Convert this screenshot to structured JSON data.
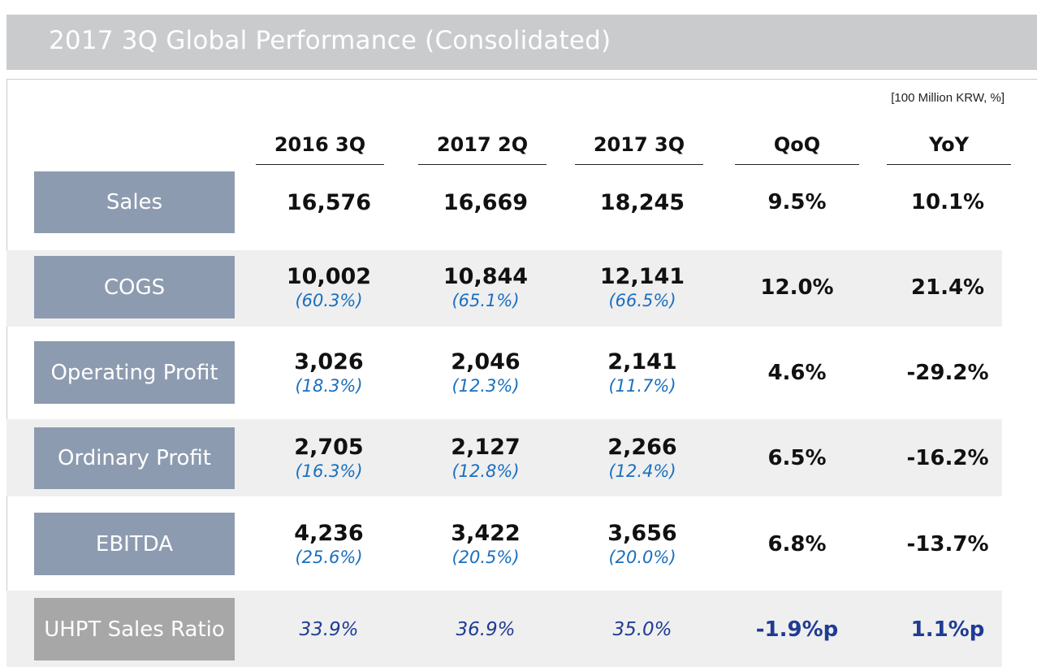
{
  "title": "2017 3Q Global Performance (Consolidated)",
  "unit_note": "[100 Million KRW, %]",
  "columns": [
    "2016 3Q",
    "2017 2Q",
    "2017 3Q",
    "QoQ",
    "YoY"
  ],
  "rows": [
    {
      "label": "Sales",
      "values": [
        "16,576",
        "16,669",
        "18,245"
      ],
      "ratios": [
        "",
        "",
        ""
      ],
      "qoq": "9.5%",
      "yoy": "10.1%"
    },
    {
      "label": "COGS",
      "values": [
        "10,002",
        "10,844",
        "12,141"
      ],
      "ratios": [
        "(60.3%)",
        "(65.1%)",
        "(66.5%)"
      ],
      "qoq": "12.0%",
      "yoy": "21.4%"
    },
    {
      "label": "Operating Profit",
      "values": [
        "3,026",
        "2,046",
        "2,141"
      ],
      "ratios": [
        "(18.3%)",
        "(12.3%)",
        "(11.7%)"
      ],
      "qoq": "4.6%",
      "yoy": "-29.2%"
    },
    {
      "label": "Ordinary Profit",
      "values": [
        "2,705",
        "2,127",
        "2,266"
      ],
      "ratios": [
        "(16.3%)",
        "(12.8%)",
        "(12.4%)"
      ],
      "qoq": "6.5%",
      "yoy": "-16.2%"
    },
    {
      "label": "EBITDA",
      "values": [
        "4,236",
        "3,422",
        "3,656"
      ],
      "ratios": [
        "(25.6%)",
        "(20.5%)",
        "(20.0%)"
      ],
      "qoq": "6.8%",
      "yoy": "-13.7%"
    },
    {
      "label": "UHPT Sales Ratio",
      "values": [
        "33.9%",
        "36.9%",
        "35.0%"
      ],
      "ratios": [
        "",
        "",
        ""
      ],
      "qoq": "-1.9%p",
      "yoy": "1.1%p"
    }
  ],
  "colors": {
    "title_bar": "#c9cbcc",
    "row_label": "#8d9bb0",
    "row_label_alt": "#a7a7a7",
    "band": "#efefef",
    "ratio_text": "#1a6fbf",
    "uhpt_text": "#1f3c93"
  }
}
